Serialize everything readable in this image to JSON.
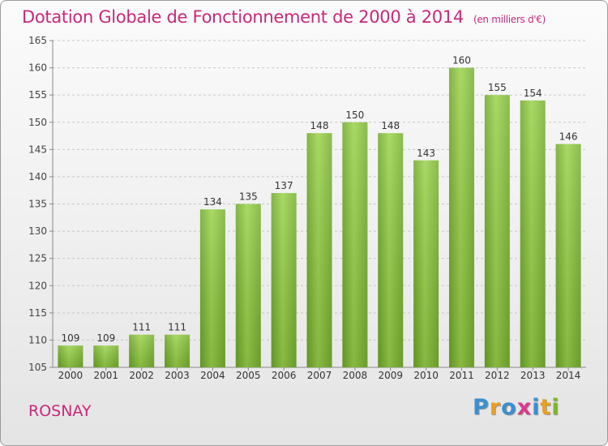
{
  "chart_data": {
    "type": "bar",
    "title": "Dotation Globale de Fonctionnement de 2000 à 2014",
    "subtitle": "(en milliers d'€)",
    "categories": [
      "2000",
      "2001",
      "2002",
      "2003",
      "2004",
      "2005",
      "2006",
      "2007",
      "2008",
      "2009",
      "2010",
      "2011",
      "2012",
      "2013",
      "2014"
    ],
    "values": [
      109,
      109,
      111,
      111,
      134,
      135,
      137,
      148,
      150,
      148,
      143,
      160,
      155,
      154,
      146
    ],
    "ylim": [
      105,
      165
    ],
    "yticks": [
      105,
      110,
      115,
      120,
      125,
      130,
      135,
      140,
      145,
      150,
      155,
      160,
      165
    ],
    "grid": true,
    "bar_color": "#8cc43c",
    "data_labels": true
  },
  "commune": "ROSNAY",
  "logo": {
    "letters": [
      "P",
      "r",
      "o",
      "x",
      "i",
      "t",
      "i"
    ],
    "colors": [
      "#3a8fd0",
      "#e8a020",
      "#3a8fd0",
      "#d93a8a",
      "#3a8fd0",
      "#e8a020",
      "#7ab828"
    ]
  },
  "colors": {
    "accent": "#c8287a",
    "axis": "#888888"
  }
}
